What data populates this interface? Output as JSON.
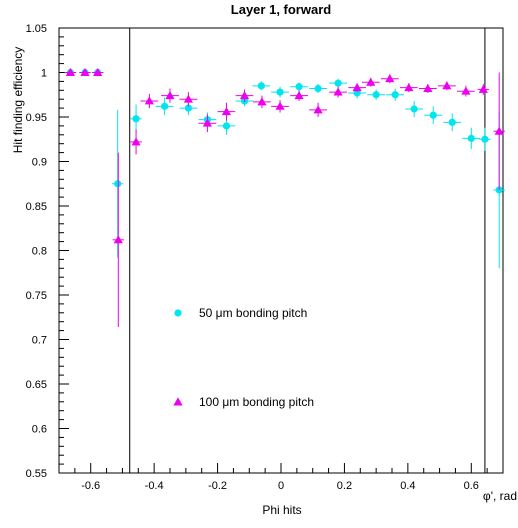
{
  "chart_data": {
    "type": "scatter",
    "title": "Layer 1, forward",
    "xlabel": "Phi hits",
    "xlabel_right": "φ', rad",
    "ylabel": "Hit finding efficiency",
    "xlim": [
      -0.7,
      0.7
    ],
    "ylim": [
      0.55,
      1.05
    ],
    "x_ticks": [
      -0.6,
      -0.4,
      -0.2,
      0,
      0.2,
      0.4,
      0.6
    ],
    "x_tick_labels": [
      "-0.6",
      "-0.4",
      "-0.2",
      "0",
      "0.2",
      "0.4",
      "0.6"
    ],
    "y_ticks": [
      0.55,
      0.6,
      0.65,
      0.7,
      0.75,
      0.8,
      0.85,
      0.9,
      0.95,
      1,
      1.05
    ],
    "y_tick_labels": [
      "0.55",
      "0.6",
      "0.65",
      "0.7",
      "0.75",
      "0.8",
      "0.85",
      "0.9",
      "0.95",
      "1",
      "1.05"
    ],
    "vertical_lines": [
      -0.477,
      0.643
    ],
    "grid": false,
    "legend_placement": "center-left",
    "series": [
      {
        "name": "50 μm bonding pitch",
        "marker": "circle",
        "color": "#00e5ee",
        "points": [
          {
            "x": -0.664,
            "y": 1.0,
            "xerr": 0.018,
            "yerr": 0.0
          },
          {
            "x": -0.618,
            "y": 1.0,
            "xerr": 0.018,
            "yerr": 0.0
          },
          {
            "x": -0.578,
            "y": 1.0,
            "xerr": 0.018,
            "yerr": 0.0
          },
          {
            "x": -0.515,
            "y": 0.875,
            "xerr": 0.018,
            "yerr": 0.083
          },
          {
            "x": -0.457,
            "y": 0.948,
            "xerr": 0.018,
            "yerr": 0.016
          },
          {
            "x": -0.367,
            "y": 0.962,
            "xerr": 0.028,
            "yerr": 0.01
          },
          {
            "x": -0.292,
            "y": 0.96,
            "xerr": 0.028,
            "yerr": 0.008
          },
          {
            "x": -0.232,
            "y": 0.947,
            "xerr": 0.028,
            "yerr": 0.008
          },
          {
            "x": -0.172,
            "y": 0.94,
            "xerr": 0.028,
            "yerr": 0.01
          },
          {
            "x": -0.115,
            "y": 0.968,
            "xerr": 0.028,
            "yerr": 0.006
          },
          {
            "x": -0.062,
            "y": 0.985,
            "xerr": 0.028,
            "yerr": 0.005
          },
          {
            "x": -0.003,
            "y": 0.978,
            "xerr": 0.028,
            "yerr": 0.006
          },
          {
            "x": 0.057,
            "y": 0.984,
            "xerr": 0.028,
            "yerr": 0.005
          },
          {
            "x": 0.117,
            "y": 0.982,
            "xerr": 0.028,
            "yerr": 0.005
          },
          {
            "x": 0.18,
            "y": 0.988,
            "xerr": 0.028,
            "yerr": 0.005
          },
          {
            "x": 0.24,
            "y": 0.977,
            "xerr": 0.028,
            "yerr": 0.006
          },
          {
            "x": 0.3,
            "y": 0.975,
            "xerr": 0.028,
            "yerr": 0.006
          },
          {
            "x": 0.36,
            "y": 0.975,
            "xerr": 0.028,
            "yerr": 0.007
          },
          {
            "x": 0.42,
            "y": 0.959,
            "xerr": 0.028,
            "yerr": 0.009
          },
          {
            "x": 0.48,
            "y": 0.952,
            "xerr": 0.028,
            "yerr": 0.01
          },
          {
            "x": 0.54,
            "y": 0.944,
            "xerr": 0.028,
            "yerr": 0.01
          },
          {
            "x": 0.6,
            "y": 0.926,
            "xerr": 0.028,
            "yerr": 0.012
          },
          {
            "x": 0.643,
            "y": 0.925,
            "xerr": 0.018,
            "yerr": 0.013
          },
          {
            "x": 0.688,
            "y": 0.868,
            "xerr": 0.018,
            "yerr": 0.088
          }
        ]
      },
      {
        "name": "100 μm bonding pitch",
        "marker": "triangle",
        "color": "#ee00ee",
        "points": [
          {
            "x": -0.664,
            "y": 1.0,
            "xerr": 0.018,
            "yerr": 0.0
          },
          {
            "x": -0.618,
            "y": 1.0,
            "xerr": 0.018,
            "yerr": 0.0
          },
          {
            "x": -0.578,
            "y": 1.0,
            "xerr": 0.018,
            "yerr": 0.0
          },
          {
            "x": -0.513,
            "y": 0.812,
            "xerr": 0.018,
            "yerr": 0.098
          },
          {
            "x": -0.457,
            "y": 0.922,
            "xerr": 0.018,
            "yerr": 0.014
          },
          {
            "x": -0.415,
            "y": 0.968,
            "xerr": 0.028,
            "yerr": 0.008
          },
          {
            "x": -0.35,
            "y": 0.974,
            "xerr": 0.028,
            "yerr": 0.008
          },
          {
            "x": -0.292,
            "y": 0.97,
            "xerr": 0.028,
            "yerr": 0.008
          },
          {
            "x": -0.232,
            "y": 0.943,
            "xerr": 0.028,
            "yerr": 0.01
          },
          {
            "x": -0.172,
            "y": 0.956,
            "xerr": 0.028,
            "yerr": 0.01
          },
          {
            "x": -0.115,
            "y": 0.974,
            "xerr": 0.028,
            "yerr": 0.007
          },
          {
            "x": -0.06,
            "y": 0.967,
            "xerr": 0.028,
            "yerr": 0.007
          },
          {
            "x": -0.003,
            "y": 0.962,
            "xerr": 0.028,
            "yerr": 0.007
          },
          {
            "x": 0.057,
            "y": 0.974,
            "xerr": 0.028,
            "yerr": 0.006
          },
          {
            "x": 0.117,
            "y": 0.958,
            "xerr": 0.028,
            "yerr": 0.008
          },
          {
            "x": 0.18,
            "y": 0.978,
            "xerr": 0.028,
            "yerr": 0.006
          },
          {
            "x": 0.24,
            "y": 0.983,
            "xerr": 0.028,
            "yerr": 0.005
          },
          {
            "x": 0.283,
            "y": 0.989,
            "xerr": 0.028,
            "yerr": 0.005
          },
          {
            "x": 0.343,
            "y": 0.993,
            "xerr": 0.028,
            "yerr": 0.005
          },
          {
            "x": 0.403,
            "y": 0.983,
            "xerr": 0.028,
            "yerr": 0.005
          },
          {
            "x": 0.463,
            "y": 0.982,
            "xerr": 0.028,
            "yerr": 0.005
          },
          {
            "x": 0.523,
            "y": 0.985,
            "xerr": 0.028,
            "yerr": 0.005
          },
          {
            "x": 0.583,
            "y": 0.979,
            "xerr": 0.028,
            "yerr": 0.006
          },
          {
            "x": 0.638,
            "y": 0.981,
            "xerr": 0.018,
            "yerr": 0.006
          },
          {
            "x": 0.688,
            "y": 0.934,
            "xerr": 0.018,
            "yerr": 0.066
          }
        ]
      }
    ],
    "legend": [
      {
        "label": "50 μm bonding pitch",
        "marker": "circle",
        "color": "#00e5ee"
      },
      {
        "label": "100 μm bonding pitch",
        "marker": "triangle",
        "color": "#ee00ee"
      }
    ]
  }
}
